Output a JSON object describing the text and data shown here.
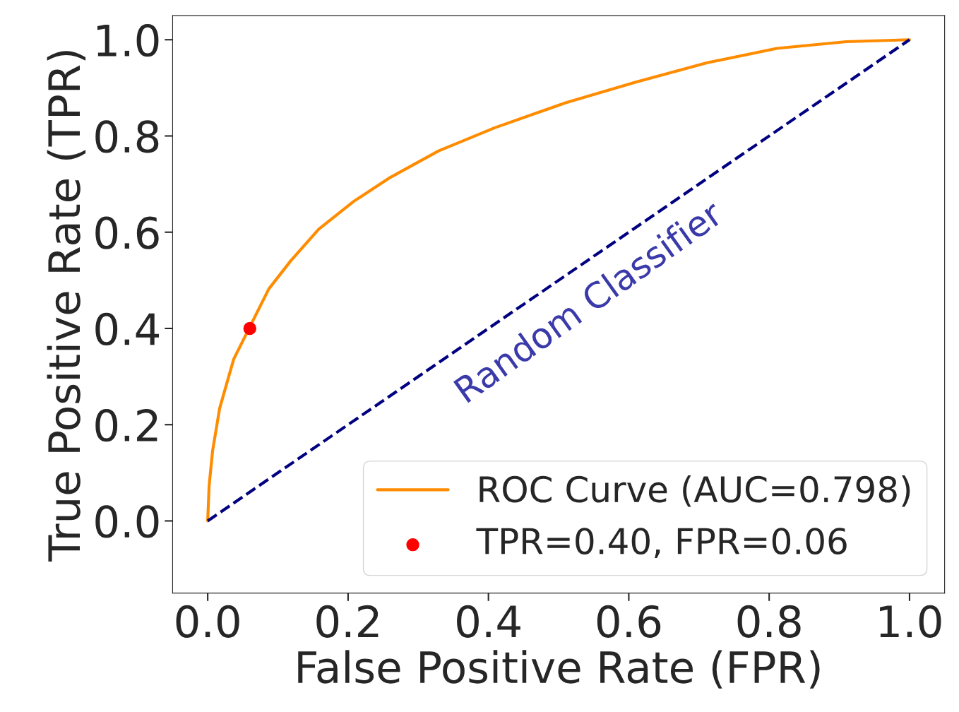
{
  "chart_data": {
    "type": "line",
    "xlabel": "False Positive Rate (FPR)",
    "ylabel": "True Positive Rate (TPR)",
    "xlim": [
      -0.05,
      1.05
    ],
    "ylim": [
      -0.15,
      1.05
    ],
    "xticks": [
      {
        "value": 0,
        "label": "0.0"
      },
      0.2,
      0.4,
      0.6,
      0.8,
      {
        "value": 1,
        "label": "1.0"
      }
    ],
    "yticks": [
      {
        "value": 0,
        "label": "0.0"
      },
      0.2,
      0.4,
      0.6,
      0.8,
      {
        "value": 1,
        "label": "1.0"
      }
    ],
    "series": [
      {
        "name": "ROC Curve (AUC=0.798)",
        "color": "#ff8c00",
        "line_style": "solid",
        "x": [
          0,
          0.002,
          0.007,
          0.017,
          0.037,
          0.087,
          0.118,
          0.158,
          0.208,
          0.258,
          0.329,
          0.409,
          0.51,
          0.61,
          0.711,
          0.811,
          0.91,
          1.0
        ],
        "values": [
          0,
          0.073,
          0.146,
          0.234,
          0.336,
          0.482,
          0.54,
          0.606,
          0.664,
          0.712,
          0.769,
          0.817,
          0.869,
          0.912,
          0.952,
          0.982,
          0.996,
          1.0
        ]
      },
      {
        "color": "#000080",
        "line_style": "dashed",
        "x": [
          0,
          1
        ],
        "values": [
          0,
          1
        ]
      },
      {
        "name": "TPR=0.40, FPR=0.06",
        "type": "scatter",
        "color": "#ff0000",
        "marker": "circle",
        "x": [
          0.06
        ],
        "values": [
          0.4
        ]
      }
    ],
    "annotations": [
      "Random Classifier"
    ],
    "legend": "bottom right",
    "grid": false
  }
}
